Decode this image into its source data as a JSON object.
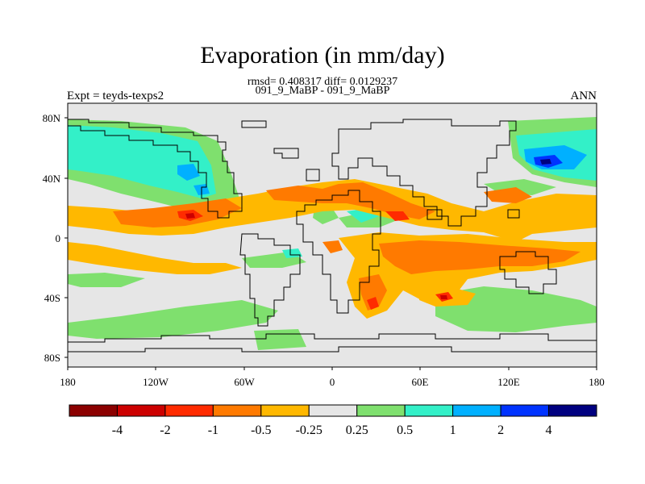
{
  "title": "Evaporation (in mm/day)",
  "stats": "rmsd= 0.408317 diff= 0.0129237",
  "case_label": "091_9_MaBP - 091_9_MaBP",
  "experiment": "Expt = teyds-texps2",
  "period": "ANN",
  "lon_ticks": [
    "180",
    "120W",
    "60W",
    "0",
    "60E",
    "120E",
    "180"
  ],
  "lat_ticks": [
    "80N",
    "40N",
    "0",
    "40S",
    "80S"
  ],
  "colorbar": {
    "colors": [
      "#8b0000",
      "#cc0000",
      "#ff2b00",
      "#ff7a00",
      "#ffb800",
      "#e6e6e6",
      "#7fe06e",
      "#33f0c8",
      "#00b0ff",
      "#0033ff",
      "#000080"
    ],
    "labels": [
      "-4",
      "-2",
      "-1",
      "-0.5",
      "-0.25",
      "0.25",
      "0.5",
      "1",
      "2",
      "4"
    ]
  }
}
